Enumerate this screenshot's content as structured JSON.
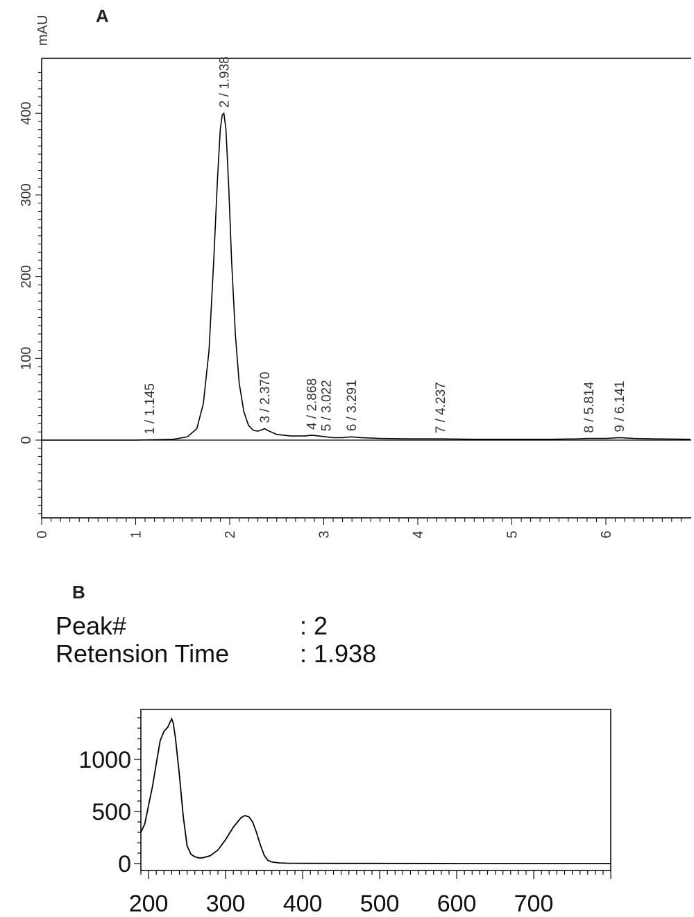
{
  "panel_a": {
    "label": "A",
    "y_unit": "mAU"
  },
  "panel_b": {
    "label": "B",
    "info": [
      {
        "key": "Peak#",
        "value": ": 2"
      },
      {
        "key": "Retension Time",
        "value": ": 1.938"
      }
    ]
  },
  "chart_data": [
    {
      "type": "line",
      "title": "",
      "xlabel": "",
      "ylabel": "mAU",
      "xlim": [
        0,
        6.9
      ],
      "ylim": [
        -95,
        470
      ],
      "x_ticks": [
        0,
        1,
        2,
        3,
        4,
        5,
        6
      ],
      "y_ticks": [
        0,
        100,
        200,
        300,
        400
      ],
      "grid": false,
      "series": [
        {
          "x": [
            0,
            1.0,
            1.4,
            1.55,
            1.65,
            1.72,
            1.78,
            1.83,
            1.87,
            1.9,
            1.92,
            1.938,
            1.96,
            1.99,
            2.02,
            2.06,
            2.1,
            2.15,
            2.2,
            2.25,
            2.3,
            2.35,
            2.37,
            2.42,
            2.5,
            2.65,
            2.8,
            2.868,
            2.95,
            3.022,
            3.1,
            3.2,
            3.291,
            3.4,
            3.6,
            3.9,
            4.237,
            4.6,
            5.0,
            5.4,
            5.7,
            5.814,
            6.0,
            6.141,
            6.3,
            6.5,
            6.9
          ],
          "y": [
            0,
            0,
            1,
            4,
            14,
            45,
            110,
            220,
            320,
            380,
            398,
            400,
            380,
            310,
            220,
            130,
            70,
            35,
            18,
            12,
            11,
            13,
            14,
            11,
            7,
            5,
            5,
            6,
            5,
            4,
            3,
            3,
            4,
            3,
            2,
            1.5,
            1.5,
            1,
            1,
            1,
            1.5,
            2,
            2,
            3,
            2,
            1.5,
            1
          ]
        }
      ],
      "peaks": [
        {
          "label": "1 / 1.145",
          "x": 1.145,
          "y": 0
        },
        {
          "label": "2 / 1.938",
          "x": 1.938,
          "y": 400
        },
        {
          "label": "3 / 2.370",
          "x": 2.37,
          "y": 14
        },
        {
          "label": "4 / 2.868",
          "x": 2.868,
          "y": 6
        },
        {
          "label": "5 / 3.022",
          "x": 3.022,
          "y": 4
        },
        {
          "label": "6 / 3.291",
          "x": 3.291,
          "y": 4
        },
        {
          "label": "7 / 4.237",
          "x": 4.237,
          "y": 1.5
        },
        {
          "label": "8 / 5.814",
          "x": 5.814,
          "y": 2
        },
        {
          "label": "9 / 6.141",
          "x": 6.141,
          "y": 3
        }
      ]
    },
    {
      "type": "line",
      "title": "",
      "xlabel": "",
      "ylabel": "",
      "xlim": [
        190,
        800
      ],
      "ylim": [
        -15,
        1440
      ],
      "x_ticks": [
        200,
        300,
        400,
        500,
        600,
        700
      ],
      "y_ticks": [
        0,
        500,
        1000
      ],
      "grid": false,
      "series": [
        {
          "x": [
            190,
            195,
            200,
            205,
            210,
            215,
            220,
            225,
            228,
            230,
            232,
            235,
            240,
            245,
            250,
            255,
            260,
            265,
            270,
            280,
            290,
            300,
            310,
            320,
            325,
            330,
            335,
            340,
            345,
            350,
            355,
            360,
            370,
            380,
            400,
            450,
            500,
            600,
            700,
            800
          ],
          "y": [
            300,
            380,
            560,
            740,
            960,
            1180,
            1270,
            1310,
            1360,
            1390,
            1350,
            1200,
            850,
            450,
            170,
            90,
            65,
            55,
            55,
            75,
            130,
            230,
            350,
            440,
            460,
            450,
            400,
            300,
            180,
            80,
            30,
            15,
            6,
            3,
            2,
            1,
            1,
            0,
            0,
            0
          ]
        }
      ]
    }
  ]
}
